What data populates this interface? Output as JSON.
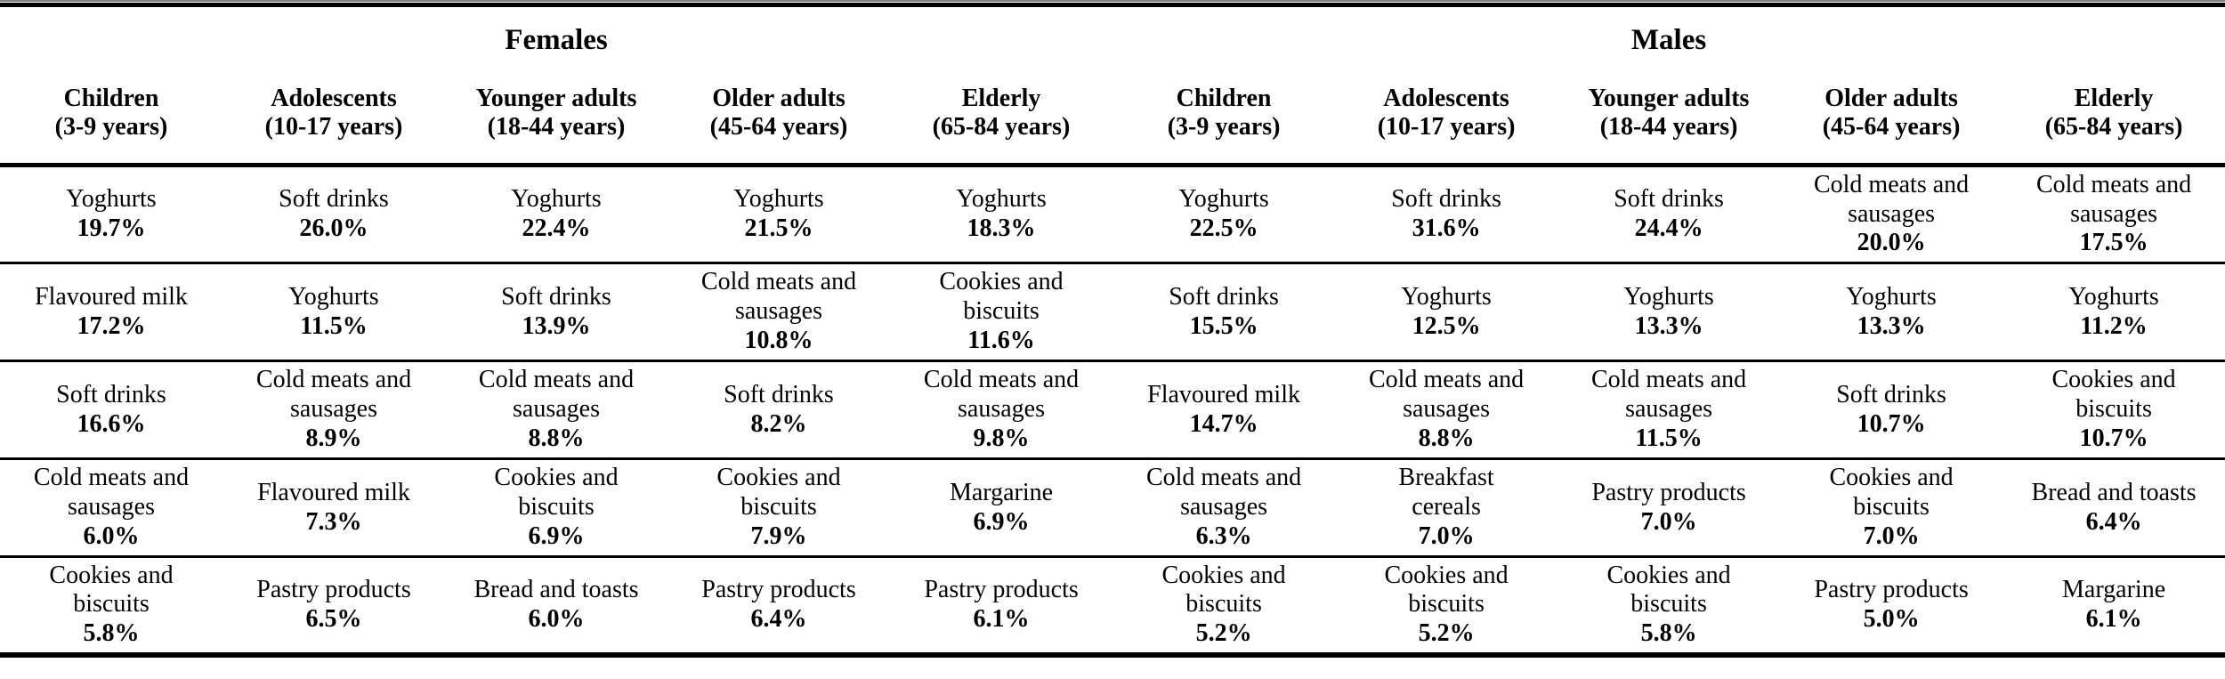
{
  "colors": {
    "background": "#ffffff",
    "text": "#000000",
    "rules": "#000000",
    "top_hairline": "#7d7d7d"
  },
  "table": {
    "group_headers": {
      "females": "Females",
      "males": "Males"
    },
    "columns": [
      "Children\n(3-9 years)",
      "Adolescents\n(10-17 years)",
      "Younger adults\n(18-44 years)",
      "Older adults\n(45-64 years)",
      "Elderly\n(65-84 years)",
      "Children\n(3-9 years)",
      "Adolescents\n(10-17 years)",
      "Younger adults\n(18-44 years)",
      "Older adults\n(45-64 years)",
      "Elderly\n(65-84 years)"
    ],
    "rows": [
      {
        "cells": [
          {
            "food": "Yoghurts",
            "pct": "19.7%"
          },
          {
            "food": "Soft drinks",
            "pct": "26.0%"
          },
          {
            "food": "Yoghurts",
            "pct": "22.4%"
          },
          {
            "food": "Yoghurts",
            "pct": "21.5%"
          },
          {
            "food": "Yoghurts",
            "pct": "18.3%"
          },
          {
            "food": "Yoghurts",
            "pct": "22.5%"
          },
          {
            "food": "Soft drinks",
            "pct": "31.6%"
          },
          {
            "food": "Soft drinks",
            "pct": "24.4%"
          },
          {
            "food": "Cold meats and\nsausages",
            "pct": "20.0%"
          },
          {
            "food": "Cold meats and\nsausages",
            "pct": "17.5%"
          }
        ]
      },
      {
        "cells": [
          {
            "food": "Flavoured milk",
            "pct": "17.2%"
          },
          {
            "food": "Yoghurts",
            "pct": "11.5%"
          },
          {
            "food": "Soft drinks",
            "pct": "13.9%"
          },
          {
            "food": "Cold meats and\nsausages",
            "pct": "10.8%"
          },
          {
            "food": "Cookies and\nbiscuits",
            "pct": "11.6%"
          },
          {
            "food": "Soft drinks",
            "pct": "15.5%"
          },
          {
            "food": "Yoghurts",
            "pct": "12.5%"
          },
          {
            "food": "Yoghurts",
            "pct": "13.3%"
          },
          {
            "food": "Yoghurts",
            "pct": "13.3%"
          },
          {
            "food": "Yoghurts",
            "pct": "11.2%"
          }
        ]
      },
      {
        "cells": [
          {
            "food": "Soft drinks",
            "pct": "16.6%"
          },
          {
            "food": "Cold meats and\nsausages",
            "pct": "8.9%"
          },
          {
            "food": "Cold meats and\nsausages",
            "pct": "8.8%"
          },
          {
            "food": "Soft drinks",
            "pct": "8.2%"
          },
          {
            "food": "Cold meats and\nsausages",
            "pct": "9.8%"
          },
          {
            "food": "Flavoured milk",
            "pct": "14.7%"
          },
          {
            "food": "Cold meats and\nsausages",
            "pct": "8.8%"
          },
          {
            "food": "Cold meats and\nsausages",
            "pct": "11.5%"
          },
          {
            "food": "Soft drinks",
            "pct": "10.7%"
          },
          {
            "food": "Cookies and\nbiscuits",
            "pct": "10.7%"
          }
        ]
      },
      {
        "cells": [
          {
            "food": "Cold meats and\nsausages",
            "pct": "6.0%"
          },
          {
            "food": "Flavoured milk",
            "pct": "7.3%"
          },
          {
            "food": "Cookies and\nbiscuits",
            "pct": "6.9%"
          },
          {
            "food": "Cookies and\nbiscuits",
            "pct": "7.9%"
          },
          {
            "food": "Margarine",
            "pct": "6.9%"
          },
          {
            "food": "Cold meats and\nsausages",
            "pct": "6.3%"
          },
          {
            "food": "Breakfast\ncereals",
            "pct": "7.0%"
          },
          {
            "food": "Pastry products",
            "pct": "7.0%"
          },
          {
            "food": "Cookies and\nbiscuits",
            "pct": "7.0%"
          },
          {
            "food": "Bread and toasts",
            "pct": "6.4%"
          }
        ]
      },
      {
        "cells": [
          {
            "food": "Cookies and\nbiscuits",
            "pct": "5.8%"
          },
          {
            "food": "Pastry products",
            "pct": "6.5%"
          },
          {
            "food": "Bread and toasts",
            "pct": "6.0%"
          },
          {
            "food": "Pastry products",
            "pct": "6.4%"
          },
          {
            "food": "Pastry products",
            "pct": "6.1%"
          },
          {
            "food": "Cookies and\nbiscuits",
            "pct": "5.2%"
          },
          {
            "food": "Cookies and\nbiscuits",
            "pct": "5.2%"
          },
          {
            "food": "Cookies and\nbiscuits",
            "pct": "5.8%"
          },
          {
            "food": "Pastry products",
            "pct": "5.0%"
          },
          {
            "food": "Margarine",
            "pct": "6.1%"
          }
        ]
      }
    ]
  }
}
